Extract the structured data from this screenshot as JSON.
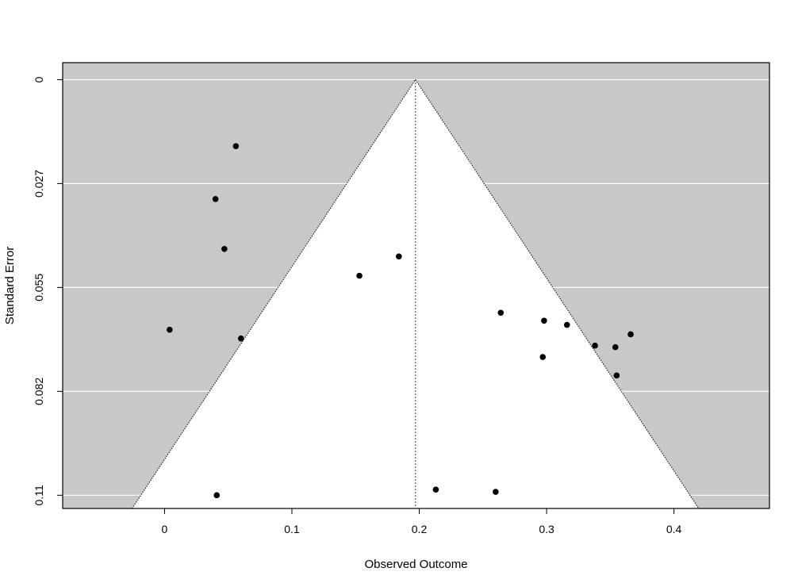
{
  "chart_data": {
    "type": "scatter",
    "subtype": "funnel plot",
    "xlabel": "Observed Outcome",
    "ylabel": "Standard Error",
    "xlim": [
      -0.08,
      0.475
    ],
    "ylim": [
      0.1135,
      -0.0045
    ],
    "y_reversed": true,
    "x_ticks": [
      0,
      0.1,
      0.2,
      0.3,
      0.4
    ],
    "x_tick_labels": [
      "0",
      "0.1",
      "0.2",
      "0.3",
      "0.4"
    ],
    "y_ticks": [
      0,
      0.0275,
      0.055,
      0.0825,
      0.11
    ],
    "y_tick_labels": [
      "0",
      "0.027",
      "0.055",
      "0.082",
      "0.11"
    ],
    "grid": "horizontal",
    "pooled_estimate": 0.197,
    "funnel_z": 1.96,
    "colors": {
      "outside_region": "#c8c8c8",
      "inside_region": "#ffffff",
      "gridline": "#ffffff",
      "points": "#000000",
      "funnel_line": "#000000"
    },
    "points": [
      {
        "x": 0.056,
        "y": 0.0176
      },
      {
        "x": 0.04,
        "y": 0.0316
      },
      {
        "x": 0.047,
        "y": 0.0448
      },
      {
        "x": 0.004,
        "y": 0.0662
      },
      {
        "x": 0.06,
        "y": 0.0685
      },
      {
        "x": 0.153,
        "y": 0.0519
      },
      {
        "x": 0.184,
        "y": 0.0468
      },
      {
        "x": 0.264,
        "y": 0.0617
      },
      {
        "x": 0.298,
        "y": 0.0638
      },
      {
        "x": 0.316,
        "y": 0.0649
      },
      {
        "x": 0.297,
        "y": 0.0734
      },
      {
        "x": 0.338,
        "y": 0.0704
      },
      {
        "x": 0.354,
        "y": 0.0708
      },
      {
        "x": 0.366,
        "y": 0.0674
      },
      {
        "x": 0.355,
        "y": 0.0783
      },
      {
        "x": 0.213,
        "y": 0.1085
      },
      {
        "x": 0.26,
        "y": 0.1091
      },
      {
        "x": 0.041,
        "y": 0.11
      }
    ]
  }
}
